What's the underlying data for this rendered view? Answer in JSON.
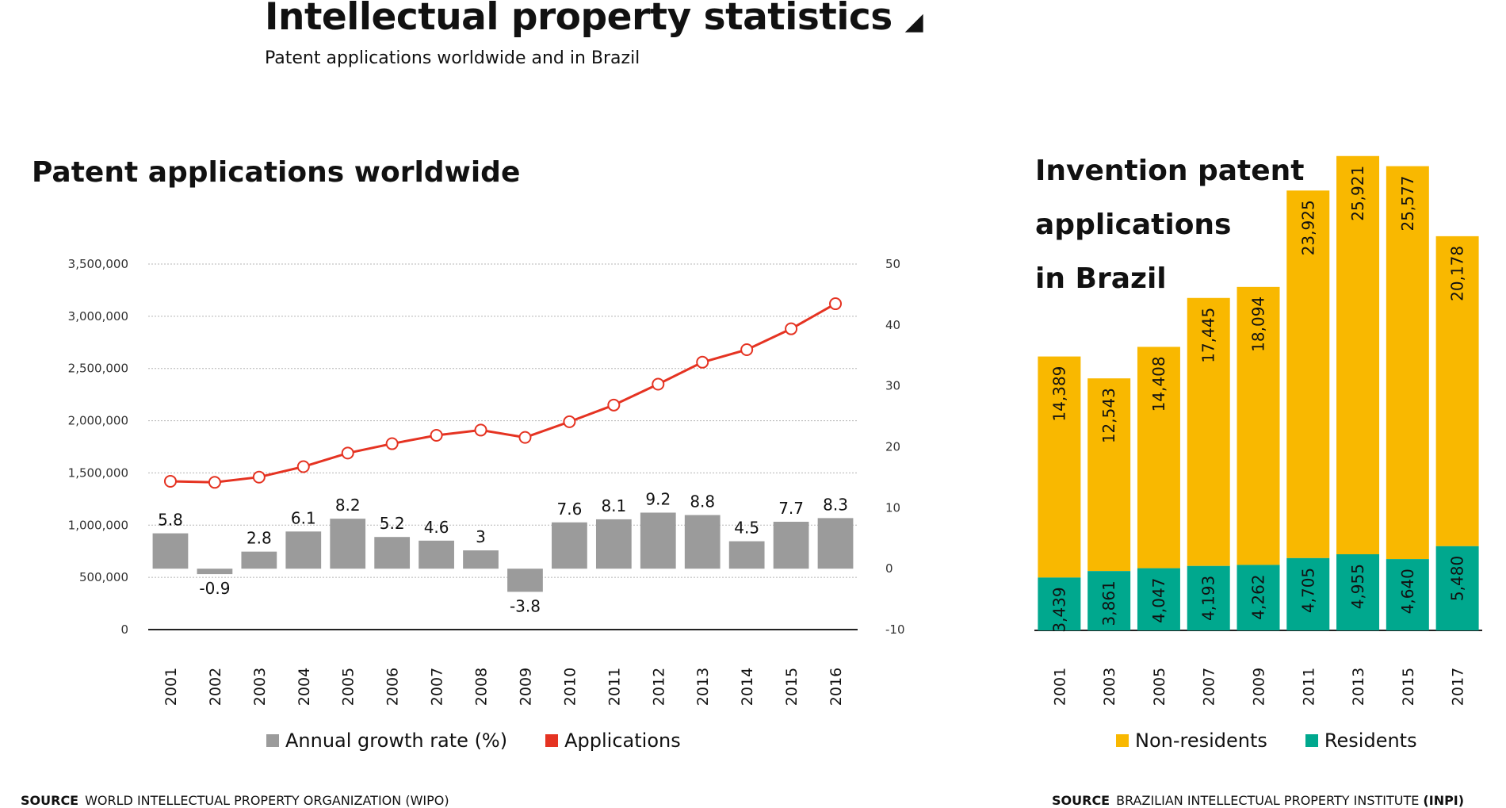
{
  "header": {
    "title": "Intellectual property statistics",
    "title_marker": "◢",
    "subtitle": "Patent applications worldwide and in Brazil"
  },
  "left_section": {
    "title": "Patent applications worldwide",
    "legend": [
      {
        "label": "Annual growth rate (%)",
        "color": "#9b9b9b"
      },
      {
        "label": "Applications",
        "color": "#e53322"
      }
    ],
    "source_label": "SOURCE",
    "source_text": "WORLD INTELLECTUAL PROPERTY ORGANIZATION (WIPO)"
  },
  "right_section": {
    "title_lines": [
      "Invention patent",
      "applications",
      "in Brazil"
    ],
    "legend": [
      {
        "label": "Non-residents",
        "color": "#f9b800"
      },
      {
        "label": "Residents",
        "color": "#00a88e"
      }
    ],
    "source_label": "SOURCE",
    "source_text": "BRAZILIAN INTELLECTUAL PROPERTY INSTITUTE",
    "source_abbrev": "(INPI)"
  },
  "chart_data": [
    {
      "type": "bar+line",
      "title": "Patent applications worldwide",
      "categories": [
        "2001",
        "2002",
        "2003",
        "2004",
        "2005",
        "2006",
        "2007",
        "2008",
        "2009",
        "2010",
        "2011",
        "2012",
        "2013",
        "2014",
        "2015",
        "2016"
      ],
      "left_axis": {
        "ticks": [
          "0",
          "500,000",
          "1,000,000",
          "1,500,000",
          "2,000,000",
          "2,500,000",
          "3,000,000",
          "3,500,000"
        ],
        "ylim": [
          0,
          3500000
        ]
      },
      "right_axis": {
        "ticks": [
          "-10",
          "0",
          "10",
          "20",
          "30",
          "40",
          "50"
        ],
        "ylim": [
          -10,
          50
        ]
      },
      "grid": true,
      "series": [
        {
          "name": "Annual growth rate (%)",
          "type": "bar",
          "axis": "right",
          "color": "#9b9b9b",
          "values": [
            5.8,
            -0.9,
            2.8,
            6.1,
            8.2,
            5.2,
            4.6,
            3,
            -3.8,
            7.6,
            8.1,
            9.2,
            8.8,
            4.5,
            7.7,
            8.3
          ],
          "labels": [
            "5.8",
            "-0.9",
            "2.8",
            "6.1",
            "8.2",
            "5.2",
            "4.6",
            "3",
            "-3.8",
            "7.6",
            "8.1",
            "9.2",
            "8.8",
            "4.5",
            "7.7",
            "8.3"
          ]
        },
        {
          "name": "Applications",
          "type": "line",
          "axis": "left",
          "color": "#e53322",
          "values": [
            1420000,
            1410000,
            1460000,
            1560000,
            1690000,
            1780000,
            1860000,
            1910000,
            1840000,
            1990000,
            2150000,
            2350000,
            2560000,
            2680000,
            2880000,
            3120000
          ]
        }
      ],
      "legend_position": "bottom"
    },
    {
      "type": "stacked-bar",
      "title": "Invention patent applications in Brazil",
      "categories": [
        "2001",
        "2003",
        "2005",
        "2007",
        "2009",
        "2011",
        "2013",
        "2015",
        "2017"
      ],
      "ylim": [
        0,
        32000
      ],
      "series": [
        {
          "name": "Residents",
          "color": "#00a88e",
          "values": [
            3439,
            3861,
            4047,
            4193,
            4262,
            4705,
            4955,
            4640,
            5480
          ],
          "labels": [
            "3,439",
            "3,861",
            "4,047",
            "4,193",
            "4,262",
            "4,705",
            "4,955",
            "4,640",
            "5,480"
          ]
        },
        {
          "name": "Non-residents",
          "color": "#f9b800",
          "values": [
            14389,
            12543,
            14408,
            17445,
            18094,
            23925,
            25921,
            25577,
            20178
          ],
          "labels": [
            "14,389",
            "12,543",
            "14,408",
            "17,445",
            "18,094",
            "23,925",
            "25,921",
            "25,577",
            "20,178"
          ]
        }
      ],
      "legend_position": "bottom"
    }
  ]
}
